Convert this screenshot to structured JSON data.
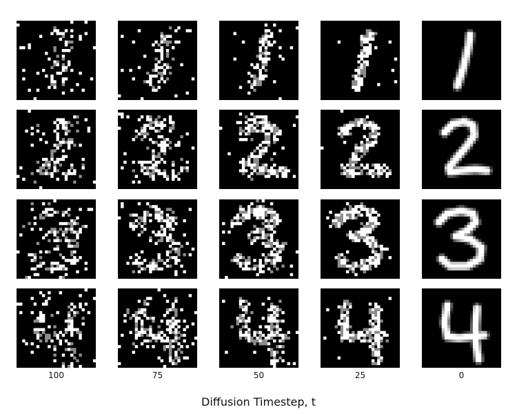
{
  "figure": {
    "xlabel": "Diffusion Timestep, t",
    "timesteps": [
      "100",
      "75",
      "50",
      "25",
      "0"
    ],
    "digits": [
      "1",
      "2",
      "3",
      "4"
    ],
    "background_color": "#000000",
    "pixel_color": "#ffffff",
    "grid": {
      "rows": 4,
      "cols": 5,
      "image_resolution": 28
    },
    "noise_levels": [
      1.0,
      0.75,
      0.5,
      0.25,
      0.0
    ]
  }
}
